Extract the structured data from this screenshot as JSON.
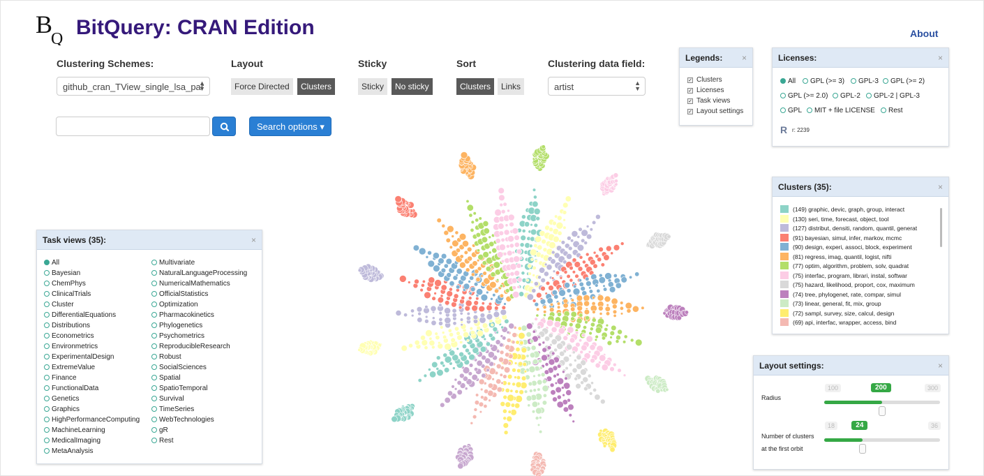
{
  "app": {
    "title": "BitQuery: CRAN Edition",
    "logo_text": "BQ",
    "about": "About"
  },
  "controls": {
    "clustering_schemes": {
      "label": "Clustering Schemes:",
      "value": "github_cran_TView_single_lsa_par"
    },
    "layout": {
      "label": "Layout",
      "options": [
        "Force Directed",
        "Clusters"
      ],
      "selected": "Clusters"
    },
    "sticky": {
      "label": "Sticky",
      "options": [
        "Sticky",
        "No sticky"
      ],
      "selected": "No sticky"
    },
    "sort": {
      "label": "Sort",
      "options": [
        "Clusters",
        "Links"
      ],
      "selected": "Clusters"
    },
    "data_field": {
      "label": "Clustering data field:",
      "value": "artist"
    },
    "search": {
      "placeholder": "",
      "button_icon": "search-icon",
      "options_label": "Search options ▾"
    }
  },
  "legends": {
    "title": "Legends:",
    "items": [
      {
        "label": "Clusters",
        "checked": true
      },
      {
        "label": "Licenses",
        "checked": true
      },
      {
        "label": "Task views",
        "checked": true
      },
      {
        "label": "Layout settings",
        "checked": true
      }
    ]
  },
  "licenses": {
    "title": "Licenses:",
    "options": [
      "All",
      "GPL (>= 3)",
      "GPL-3",
      "GPL (>= 2)",
      "GPL (>= 2.0)",
      "GPL-2",
      "GPL-2 | GPL-3",
      "GPL",
      "MIT + file LICENSE",
      "Rest"
    ],
    "selected": "All",
    "r_count": "r: 2239"
  },
  "clusters": {
    "title": "Clusters (35):",
    "items": [
      {
        "label": "(149) graphic, devic, graph, group, interact",
        "color": "#8dd3c7"
      },
      {
        "label": "(130) seri, time, forecast, object, tool",
        "color": "#ffffb3"
      },
      {
        "label": "(127) distribut, densiti, random, quantil, generat",
        "color": "#bebada"
      },
      {
        "label": "(91) bayesian, simul, infer, markov, mcmc",
        "color": "#fb8072"
      },
      {
        "label": "(90) design, experi, associ, block, experiment",
        "color": "#80b1d3"
      },
      {
        "label": "(81) regress, imag, quantil, logist, nifti",
        "color": "#fdb462"
      },
      {
        "label": "(77) optim, algorithm, problem, solv, quadrat",
        "color": "#b3de69"
      },
      {
        "label": "(75) interfac, program, librari, instal, softwar",
        "color": "#fccde5"
      },
      {
        "label": "(75) hazard, likelihood, proport, cox, maximum",
        "color": "#d9d9d9"
      },
      {
        "label": "(74) tree, phylogenet, rate, compar, simul",
        "color": "#bc80bd"
      },
      {
        "label": "(73) linear, general, fit, mix, group",
        "color": "#ccebc5"
      },
      {
        "label": "(72) sampl, survey, size, calcul, design",
        "color": "#ffed6f"
      },
      {
        "label": "(69) api, interfac, wrapper, access, bind",
        "color": "#f4b9b2"
      }
    ]
  },
  "task_views": {
    "title": "Task views (35):",
    "col1": [
      "All",
      "Bayesian",
      "ChemPhys",
      "ClinicalTrials",
      "Cluster",
      "DifferentialEquations",
      "Distributions",
      "Econometrics",
      "Environmetrics",
      "ExperimentalDesign",
      "ExtremeValue",
      "Finance",
      "FunctionalData",
      "Genetics",
      "Graphics",
      "HighPerformanceComputing",
      "MachineLearning",
      "MedicalImaging",
      "MetaAnalysis"
    ],
    "col2": [
      "Multivariate",
      "NaturalLanguageProcessing",
      "NumericalMathematics",
      "OfficialStatistics",
      "Optimization",
      "Pharmacokinetics",
      "Phylogenetics",
      "Psychometrics",
      "ReproducibleResearch",
      "Robust",
      "SocialSciences",
      "Spatial",
      "SpatioTemporal",
      "Survival",
      "TimeSeries",
      "WebTechnologies",
      "gR",
      "Rest"
    ],
    "selected": "All"
  },
  "layout_settings": {
    "title": "Layout settings:",
    "radius": {
      "label": "Radius",
      "min": "100",
      "max": "300",
      "value": "200",
      "fraction": 0.5
    },
    "clusters_orbit": {
      "label_line1": "Number of clusters",
      "label_line2": "at the first orbit",
      "min": "18",
      "max": "36",
      "value": "24",
      "fraction": 0.333
    }
  },
  "visualization": {
    "petal_colors": [
      "#8dd3c7",
      "#ffffb3",
      "#bebada",
      "#fb8072",
      "#80b1d3",
      "#fdb462",
      "#b3de69",
      "#fccde5",
      "#d9d9d9",
      "#bc80bd",
      "#ccebc5",
      "#ffed6f",
      "#f4b9b2",
      "#c7a7cf"
    ]
  }
}
